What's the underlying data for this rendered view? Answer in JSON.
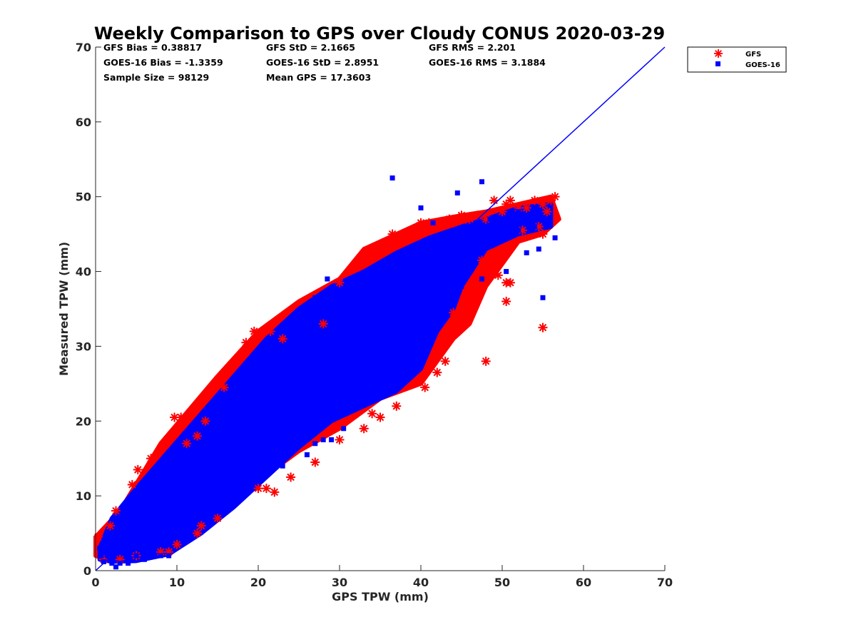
{
  "chart_data": {
    "type": "scatter",
    "title": "Weekly Comparison to GPS over Cloudy CONUS 2020-03-29",
    "xlabel": "GPS TPW (mm)",
    "ylabel": "Measured TPW (mm)",
    "xlim": [
      0,
      70
    ],
    "ylim": [
      0,
      70
    ],
    "xticks": [
      "0",
      "10",
      "20",
      "30",
      "40",
      "50",
      "60",
      "70"
    ],
    "yticks": [
      "0",
      "10",
      "20",
      "30",
      "40",
      "50",
      "60",
      "70"
    ],
    "grid": false,
    "legend_position": "outside top-right",
    "stats": [
      [
        "GFS Bias = 0.38817",
        "GFS StD = 2.1665",
        "GFS RMS = 2.201"
      ],
      [
        "GOES-16 Bias = -1.3359",
        "GOES-16 StD = 2.8951",
        "GOES-16 RMS = 3.1884"
      ],
      [
        "Sample Size = 98129",
        "Mean GPS = 17.3603",
        ""
      ]
    ],
    "reference_line": {
      "x": [
        0,
        70
      ],
      "y": [
        0,
        70
      ],
      "color": "#0000ff"
    },
    "series": [
      {
        "name": "GFS",
        "marker": "asterisk",
        "color": "#ff0000",
        "cloud": [
          [
            0,
            4.5
          ],
          [
            3,
            8
          ],
          [
            8,
            17
          ],
          [
            15,
            26
          ],
          [
            20,
            32
          ],
          [
            25,
            36
          ],
          [
            30,
            39
          ],
          [
            33,
            43
          ],
          [
            40,
            46.5
          ],
          [
            45,
            47.5
          ],
          [
            48,
            48
          ],
          [
            52,
            49
          ],
          [
            56,
            50
          ],
          [
            57,
            47
          ],
          [
            55,
            45
          ],
          [
            52,
            44
          ],
          [
            48,
            38
          ],
          [
            46,
            33
          ],
          [
            44,
            31
          ],
          [
            40,
            25
          ],
          [
            35,
            23
          ],
          [
            30,
            19
          ],
          [
            25,
            16
          ],
          [
            20,
            12
          ],
          [
            15,
            7
          ],
          [
            10,
            3.5
          ],
          [
            5,
            1.5
          ],
          [
            2,
            1.2
          ],
          [
            0,
            2
          ]
        ],
        "x": [
          0.3,
          1.8,
          2.5,
          4.5,
          5.2,
          6.8,
          9.7,
          10.5,
          11.2,
          12.5,
          13.5,
          15.8,
          16.5,
          17.5,
          18.5,
          19.5,
          21.5,
          23,
          28,
          30,
          33.5,
          34,
          36.5,
          38,
          40,
          41,
          42,
          43,
          43.5,
          44,
          45,
          45.5,
          46,
          47,
          48,
          49,
          50,
          50.5,
          51,
          52,
          53,
          54,
          55,
          55.5,
          56,
          56.5,
          47.5,
          48.5,
          49.5,
          50.5,
          51,
          52.5,
          54.5,
          55,
          55,
          50.5,
          48,
          44,
          43,
          42,
          40.5,
          37,
          34,
          33,
          30,
          27,
          24,
          21,
          20,
          15,
          13,
          12.5,
          10,
          8,
          5,
          3,
          1,
          9,
          22,
          35
        ],
        "y": [
          4.5,
          6,
          8,
          11.5,
          13.5,
          15,
          20.5,
          20.5,
          17,
          18,
          20,
          24.5,
          27,
          28.5,
          30.5,
          32,
          32,
          31,
          33,
          38.5,
          42,
          42.5,
          45,
          45,
          46.5,
          46.5,
          46,
          46.5,
          47,
          46.5,
          47.5,
          47,
          47,
          47.5,
          47,
          49.5,
          48,
          49,
          49.5,
          48.5,
          48.5,
          49.5,
          49,
          48,
          49.5,
          50,
          41.5,
          40,
          39.5,
          38.5,
          38.5,
          45.5,
          46,
          45,
          32.5,
          36,
          28,
          34.5,
          28,
          26.5,
          24.5,
          22,
          21,
          19,
          17.5,
          14.5,
          12.5,
          11,
          11,
          7,
          6,
          5,
          3.5,
          2.5,
          2,
          1.5,
          1.5,
          2.5,
          10.5,
          20.5
        ],
        "fill_polygon": [
          [
            0,
            4.5
          ],
          [
            3,
            8
          ],
          [
            8,
            17
          ],
          [
            15,
            26
          ],
          [
            20,
            32
          ],
          [
            25,
            36
          ],
          [
            30,
            39
          ],
          [
            33,
            43
          ],
          [
            40,
            46.5
          ],
          [
            45,
            47.5
          ],
          [
            48,
            48
          ],
          [
            52,
            49
          ],
          [
            56,
            50
          ],
          [
            57,
            47
          ],
          [
            55,
            45
          ],
          [
            52,
            44
          ],
          [
            48,
            38
          ],
          [
            46,
            33
          ],
          [
            44,
            31
          ],
          [
            40,
            25
          ],
          [
            35,
            23
          ],
          [
            30,
            19
          ],
          [
            25,
            16
          ],
          [
            20,
            12
          ],
          [
            15,
            7
          ],
          [
            10,
            3.5
          ],
          [
            5,
            1.5
          ],
          [
            2,
            1.2
          ],
          [
            0,
            2
          ]
        ]
      },
      {
        "name": "GOES-16",
        "marker": "square",
        "color": "#0000ff",
        "x": [
          36.5,
          47.5,
          44.5,
          40,
          41.5,
          28.5,
          27,
          31,
          35.5,
          37,
          33,
          30,
          25,
          24,
          22,
          18,
          15,
          13,
          14.5,
          10,
          7,
          5,
          3,
          2,
          1.5,
          0.5,
          40.5,
          46,
          48.5,
          50,
          52,
          54,
          56.5,
          54.5,
          53,
          50.5,
          47.5,
          45,
          44,
          42,
          38,
          36,
          34,
          33,
          30.5,
          29,
          28,
          27,
          26,
          23,
          21,
          19,
          17,
          16,
          15.5,
          14,
          12,
          11,
          9,
          8,
          6,
          4,
          2.5,
          1,
          0.7,
          55,
          52
        ],
        "y": [
          52.5,
          52,
          50.5,
          48.5,
          46.5,
          39,
          36.5,
          35,
          30,
          27.5,
          25,
          21,
          20,
          18.5,
          17,
          17,
          14,
          12,
          9,
          5,
          3,
          2,
          1,
          1,
          2,
          3,
          44,
          44.5,
          47,
          46,
          45.5,
          46,
          44.5,
          43,
          42.5,
          40,
          39,
          38,
          37,
          34,
          29,
          26,
          24,
          23.5,
          19,
          17.5,
          17.5,
          17,
          15.5,
          14,
          13.5,
          13,
          10,
          9,
          8,
          7,
          6,
          4,
          2,
          2,
          1.5,
          1,
          0.5,
          1.2,
          2,
          36.5,
          48
        ],
        "fill_polygon": [
          [
            0.5,
            3
          ],
          [
            2,
            7
          ],
          [
            5,
            11
          ],
          [
            9,
            16
          ],
          [
            13,
            21
          ],
          [
            17,
            26
          ],
          [
            21,
            31
          ],
          [
            25,
            35
          ],
          [
            29,
            38
          ],
          [
            33,
            40
          ],
          [
            37,
            42.5
          ],
          [
            41,
            44.5
          ],
          [
            45,
            46
          ],
          [
            48,
            47
          ],
          [
            52,
            48.5
          ],
          [
            56,
            49
          ],
          [
            56,
            46
          ],
          [
            52,
            45
          ],
          [
            48,
            43
          ],
          [
            45,
            38
          ],
          [
            44,
            35
          ],
          [
            42,
            32
          ],
          [
            40,
            27
          ],
          [
            37,
            24
          ],
          [
            33,
            22
          ],
          [
            29,
            20
          ],
          [
            25,
            16.5
          ],
          [
            21,
            12.5
          ],
          [
            17,
            8.5
          ],
          [
            13,
            5
          ],
          [
            9,
            2.2
          ],
          [
            5,
            1.3
          ],
          [
            2,
            1.2
          ],
          [
            0.5,
            1.5
          ]
        ]
      }
    ]
  }
}
